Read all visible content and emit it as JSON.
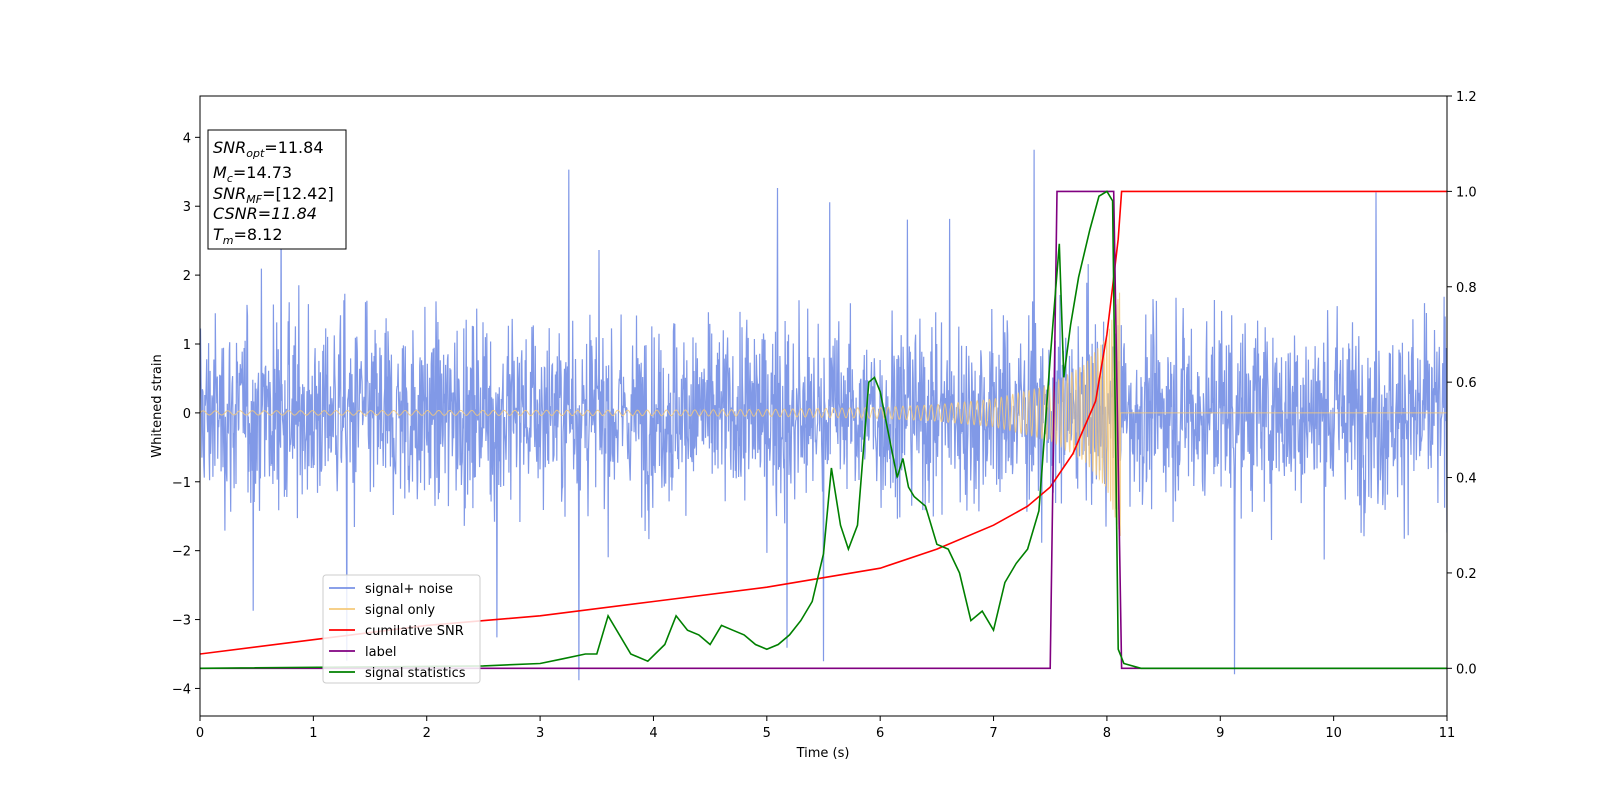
{
  "chart_data": {
    "type": "line",
    "title": "",
    "xlabel": "Time (s)",
    "ylabel": "Whitened strain",
    "xlim": [
      0,
      11
    ],
    "ylim": [
      -4.4,
      4.6
    ],
    "y2lim": [
      -0.1,
      1.2
    ],
    "x_ticks": [
      "0",
      "1",
      "2",
      "3",
      "4",
      "5",
      "6",
      "7",
      "8",
      "9",
      "10",
      "11"
    ],
    "y_ticks": [
      "−4",
      "−3",
      "−2",
      "−1",
      "0",
      "1",
      "2",
      "3",
      "4"
    ],
    "y2_ticks": [
      "0.0",
      "0.2",
      "0.4",
      "0.6",
      "0.8",
      "1.0",
      "1.2"
    ],
    "legend_position": "lower-left",
    "grid": false,
    "info_box": {
      "snr_opt": "=11.84",
      "mc": "=14.73",
      "snr_mf": "=[12.42]",
      "csnr": "CSNR=11.84",
      "tm": "=8.12"
    },
    "series": [
      {
        "name": "signal+ noise",
        "axis": "left",
        "color": "#7a93e6",
        "description": "noisy whitened strain, roughly ±2 with spikes up to ~3.9; approximated",
        "amplitude_range": [
          -3.9,
          3.95
        ]
      },
      {
        "name": "signal only",
        "axis": "left",
        "color": "#f5c97a",
        "description": "chirp growing in amplitude until merger near t=8.12 s",
        "envelope": {
          "t": [
            0,
            4,
            5,
            6,
            6.5,
            7,
            7.5,
            7.8,
            8.0,
            8.12
          ],
          "amp": [
            0.03,
            0.04,
            0.05,
            0.08,
            0.12,
            0.2,
            0.4,
            0.7,
            1.1,
            1.8
          ]
        }
      },
      {
        "name": "cumilative SNR",
        "axis": "right",
        "color": "#ff0000",
        "x": [
          0,
          1,
          2,
          3,
          4,
          5,
          5.5,
          6,
          6.5,
          7,
          7.3,
          7.5,
          7.7,
          7.9,
          8.0,
          8.05,
          8.1,
          8.13,
          11
        ],
        "y": [
          0.03,
          0.06,
          0.09,
          0.11,
          0.14,
          0.17,
          0.19,
          0.21,
          0.25,
          0.3,
          0.34,
          0.38,
          0.45,
          0.56,
          0.7,
          0.8,
          0.9,
          1.0,
          1.0
        ]
      },
      {
        "name": "label",
        "axis": "right",
        "color": "#800080",
        "x": [
          0,
          7.5,
          7.56,
          8.06,
          8.13,
          11
        ],
        "y": [
          0,
          0,
          1.0,
          1.0,
          0,
          0
        ]
      },
      {
        "name": "signal statistics",
        "axis": "right",
        "color": "#008000",
        "x": [
          0,
          2.5,
          3.0,
          3.2,
          3.4,
          3.5,
          3.6,
          3.8,
          3.95,
          4.1,
          4.2,
          4.3,
          4.4,
          4.5,
          4.6,
          4.7,
          4.8,
          4.9,
          5.0,
          5.1,
          5.2,
          5.3,
          5.4,
          5.5,
          5.57,
          5.65,
          5.72,
          5.8,
          5.9,
          5.95,
          6.0,
          6.1,
          6.15,
          6.2,
          6.25,
          6.3,
          6.4,
          6.5,
          6.6,
          6.7,
          6.8,
          6.9,
          7.0,
          7.1,
          7.2,
          7.3,
          7.4,
          7.5,
          7.58,
          7.62,
          7.68,
          7.75,
          7.85,
          7.93,
          8.0,
          8.05,
          8.1,
          8.15,
          8.3,
          11
        ],
        "y": [
          0,
          0.005,
          0.01,
          0.02,
          0.03,
          0.03,
          0.11,
          0.03,
          0.015,
          0.05,
          0.11,
          0.08,
          0.07,
          0.05,
          0.09,
          0.08,
          0.07,
          0.05,
          0.04,
          0.05,
          0.07,
          0.1,
          0.14,
          0.24,
          0.42,
          0.3,
          0.25,
          0.3,
          0.6,
          0.61,
          0.58,
          0.46,
          0.4,
          0.44,
          0.38,
          0.36,
          0.34,
          0.26,
          0.25,
          0.2,
          0.1,
          0.12,
          0.08,
          0.18,
          0.22,
          0.25,
          0.33,
          0.65,
          0.89,
          0.61,
          0.72,
          0.82,
          0.92,
          0.99,
          1.0,
          0.98,
          0.04,
          0.01,
          0.0,
          0.0
        ]
      }
    ]
  }
}
